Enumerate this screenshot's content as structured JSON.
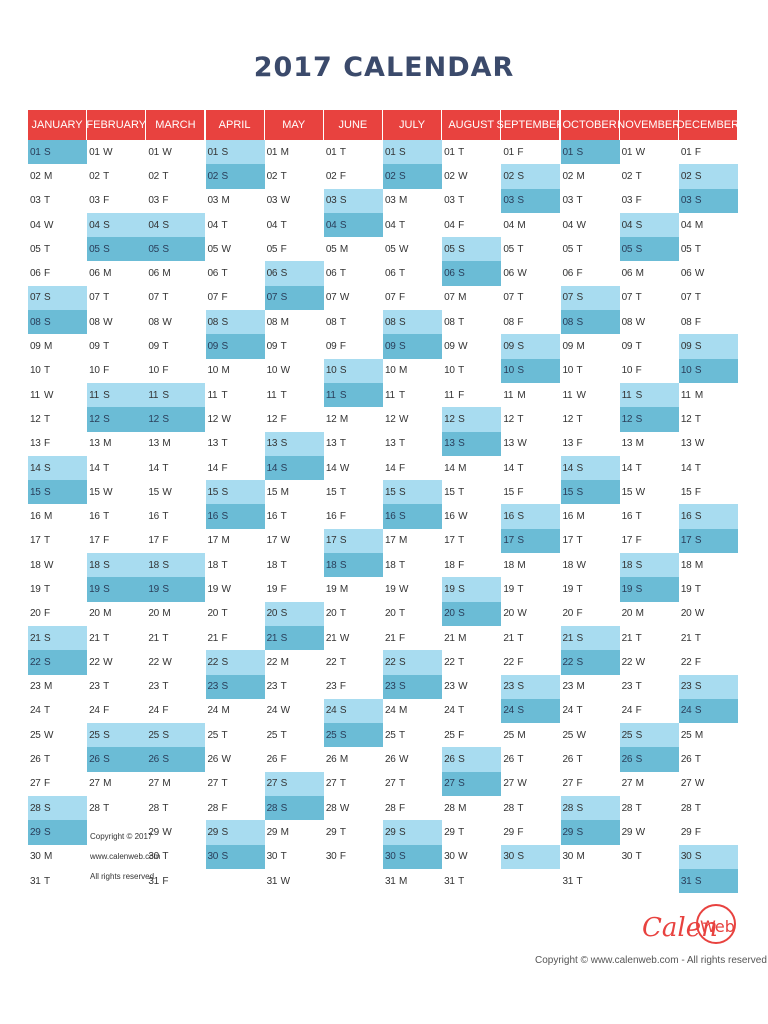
{
  "title": "2017 CALENDAR",
  "colors": {
    "header": "#e8423f",
    "saturday": "#a8dcf0",
    "sunday": "#6bbcd6",
    "title": "#3b4a6b"
  },
  "months": [
    {
      "name": "JANUARY",
      "days": 31,
      "start": 0
    },
    {
      "name": "FEBRUARY",
      "days": 28,
      "start": 3
    },
    {
      "name": "MARCH",
      "days": 31,
      "start": 3
    },
    {
      "name": "APRIL",
      "days": 30,
      "start": 6
    },
    {
      "name": "MAY",
      "days": 31,
      "start": 1
    },
    {
      "name": "JUNE",
      "days": 30,
      "start": 4
    },
    {
      "name": "JULY",
      "days": 31,
      "start": 6
    },
    {
      "name": "AUGUST",
      "days": 31,
      "start": 2
    },
    {
      "name": "SEPTEMBER",
      "days": 30,
      "start": 5
    },
    {
      "name": "OCTOBER",
      "days": 31,
      "start": 0
    },
    {
      "name": "NOVEMBER",
      "days": 30,
      "start": 3
    },
    {
      "name": "DECEMBER",
      "days": 31,
      "start": 5
    }
  ],
  "weekday_letters": [
    "S",
    "M",
    "T",
    "W",
    "T",
    "F",
    "S"
  ],
  "february_note": [
    "Copyright © 2017",
    "www.calenweb.com",
    "All rights reserved"
  ],
  "logo_text": {
    "part1": "Calen",
    "part2": "Web"
  },
  "footer_copyright": "Copyright © www.calenweb.com - All rights reserved"
}
